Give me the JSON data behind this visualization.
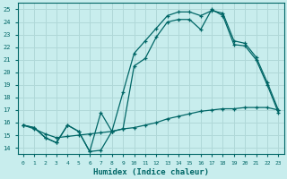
{
  "xlabel": "Humidex (Indice chaleur)",
  "xlim": [
    -0.5,
    23.5
  ],
  "ylim": [
    13.5,
    25.5
  ],
  "xticks": [
    0,
    1,
    2,
    3,
    4,
    5,
    6,
    7,
    8,
    9,
    10,
    11,
    12,
    13,
    14,
    15,
    16,
    17,
    18,
    19,
    20,
    21,
    22,
    23
  ],
  "yticks": [
    14,
    15,
    16,
    17,
    18,
    19,
    20,
    21,
    22,
    23,
    24,
    25
  ],
  "bg_color": "#c8eded",
  "line_color": "#006666",
  "grid_color": "#b0d8d8",
  "line1_x": [
    0,
    1,
    2,
    3,
    4,
    5,
    6,
    7,
    8,
    9,
    10,
    11,
    12,
    13,
    14,
    15,
    16,
    17,
    18,
    19,
    20,
    21,
    22,
    23
  ],
  "line1_y": [
    15.8,
    15.6,
    14.8,
    14.4,
    15.8,
    15.3,
    13.7,
    13.8,
    15.3,
    15.5,
    20.5,
    21.1,
    22.8,
    24.0,
    24.2,
    24.2,
    23.4,
    25.0,
    24.5,
    22.2,
    22.1,
    21.0,
    19.0,
    16.8
  ],
  "line2_x": [
    0,
    1,
    2,
    3,
    4,
    5,
    6,
    7,
    8,
    9,
    10,
    11,
    12,
    13,
    14,
    15,
    16,
    17,
    18,
    19,
    20,
    21,
    22,
    23
  ],
  "line2_y": [
    15.8,
    15.6,
    14.8,
    14.4,
    15.8,
    15.3,
    13.7,
    16.8,
    15.3,
    18.4,
    21.5,
    22.5,
    23.5,
    24.5,
    24.8,
    24.8,
    24.5,
    24.9,
    24.7,
    22.5,
    22.3,
    21.2,
    19.2,
    17.0
  ],
  "line3_x": [
    0,
    1,
    2,
    3,
    4,
    5,
    6,
    7,
    8,
    9,
    10,
    11,
    12,
    13,
    14,
    15,
    16,
    17,
    18,
    19,
    20,
    21,
    22,
    23
  ],
  "line3_y": [
    15.8,
    15.5,
    15.1,
    14.8,
    14.9,
    15.0,
    15.1,
    15.2,
    15.3,
    15.5,
    15.6,
    15.8,
    16.0,
    16.3,
    16.5,
    16.7,
    16.9,
    17.0,
    17.1,
    17.1,
    17.2,
    17.2,
    17.2,
    17.0
  ]
}
